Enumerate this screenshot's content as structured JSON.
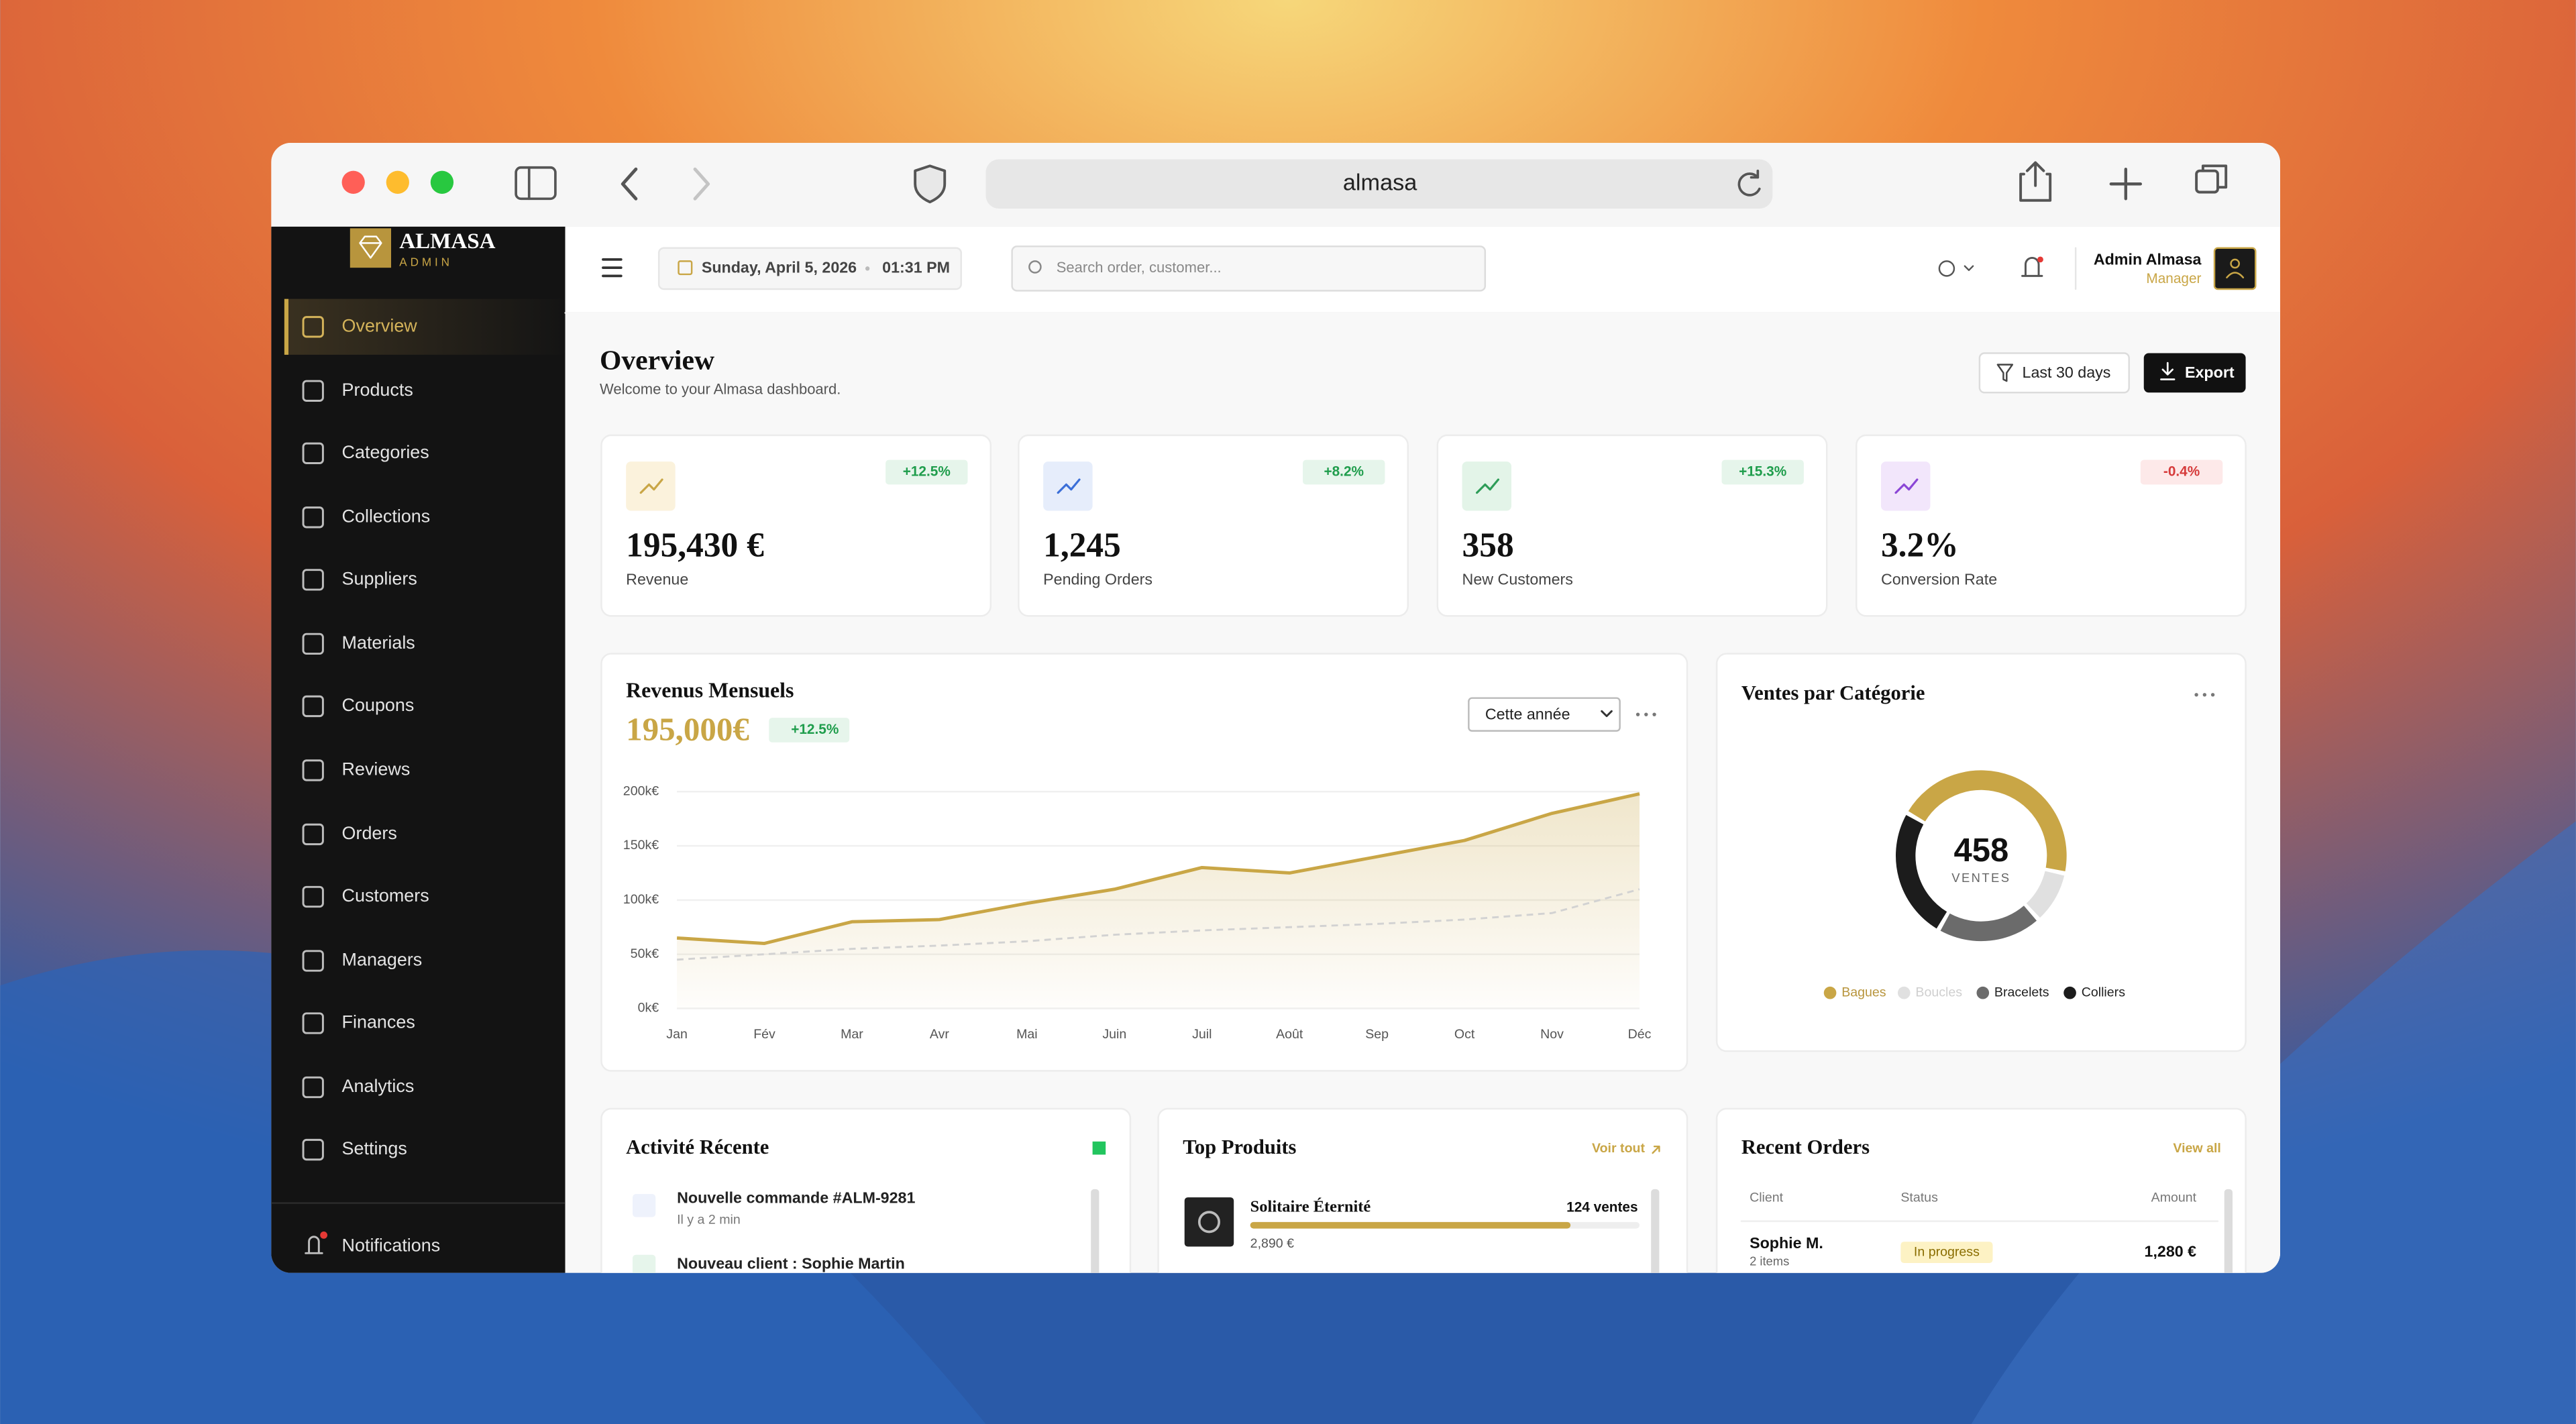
{
  "browser": {
    "url": "almasa"
  },
  "sidebar": {
    "brand": "ALMASA",
    "brand_sub": "ADMIN",
    "nav": [
      "Overview",
      "Products",
      "Categories",
      "Collections",
      "Suppliers",
      "Materials",
      "Coupons",
      "Reviews",
      "Orders",
      "Customers",
      "Managers",
      "Finances",
      "Analytics",
      "Settings"
    ],
    "footer": "Notifications"
  },
  "topbar": {
    "date": "Sunday, April 5, 2026",
    "time": "01:31 PM",
    "search_placeholder": "Search order, customer...",
    "user_name": "Admin Almasa",
    "user_role": "Manager"
  },
  "header": {
    "title": "Overview",
    "subtitle": "Welcome to your Almasa dashboard.",
    "filter_button": "Last 30 days",
    "export_button": "Export"
  },
  "kpis": [
    {
      "value": "195,430 €",
      "label": "Revenue",
      "change": "+12.5%"
    },
    {
      "value": "1,245",
      "label": "Pending Orders",
      "change": "+8.2%"
    },
    {
      "value": "358",
      "label": "New Customers",
      "change": "+15.3%"
    },
    {
      "value": "3.2%",
      "label": "Conversion Rate",
      "change": "-0.4%"
    }
  ],
  "revenue_chart": {
    "type": "line",
    "title": "Revenus Mensuels",
    "total": "195,000€",
    "change": "+12.5%",
    "period": "Cette année",
    "categories": [
      "Jan",
      "Fév",
      "Mar",
      "Avr",
      "Mai",
      "Juin",
      "Juil",
      "Août",
      "Sep",
      "Oct",
      "Nov",
      "Déc"
    ],
    "series": [
      {
        "color": "#c9a646",
        "values": [
          65,
          60,
          80,
          82,
          97,
          110,
          130,
          125,
          140,
          155,
          180,
          198
        ]
      },
      {
        "color": "#d2d2d2",
        "values": [
          45,
          50,
          55,
          58,
          62,
          68,
          72,
          75,
          78,
          82,
          88,
          110
        ]
      }
    ],
    "ylim": [
      0,
      200
    ],
    "yticks": [
      {
        "value": 0,
        "label": "0k€"
      },
      {
        "value": 50,
        "label": "50k€"
      },
      {
        "value": 100,
        "label": "100k€"
      },
      {
        "value": 150,
        "label": "150k€"
      },
      {
        "value": 200,
        "label": "200k€"
      }
    ]
  },
  "category_chart": {
    "type": "pie",
    "title": "Ventes par Catégorie",
    "total": "458",
    "total_label": "VENTES",
    "categories": [
      "Bagues",
      "Boucles",
      "Bracelets",
      "Colliers"
    ],
    "values": [
      45,
      10,
      20,
      25
    ],
    "colors": [
      "#c9a646",
      "#e0e0e0",
      "#6b6b6b",
      "#1c1c1c"
    ]
  },
  "activity": {
    "title": "Activité Récente",
    "items": [
      {
        "text": "Nouvelle commande #ALM-9281",
        "time": "Il y a 2 min"
      },
      {
        "text": "Nouveau client : Sophie Martin"
      }
    ]
  },
  "top_products": {
    "title": "Top Produits",
    "link": "Voir tout",
    "items": [
      {
        "name": "Solitaire Éternité",
        "sales": "124 ventes",
        "price": "2,890 €"
      }
    ]
  },
  "recent_orders": {
    "title": "Recent Orders",
    "link": "View all",
    "columns": [
      "Client",
      "Status",
      "Amount"
    ],
    "rows": [
      {
        "client": "Sophie M.",
        "items": "2 items",
        "status": "In progress",
        "amount": "1,280 €"
      }
    ]
  }
}
